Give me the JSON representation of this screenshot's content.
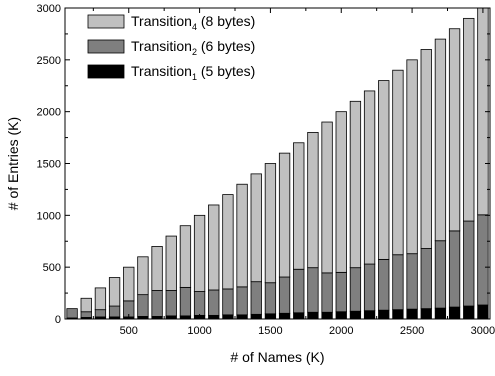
{
  "chart_data": {
    "type": "bar",
    "stacked": true,
    "xlabel": "# of Names (K)",
    "ylabel": "# of Entries (K)",
    "xlim": [
      0,
      3000
    ],
    "ylim": [
      0,
      3000
    ],
    "xticks": [
      500,
      1000,
      1500,
      2000,
      2500,
      3000
    ],
    "yticks": [
      0,
      500,
      1000,
      1500,
      2000,
      2500,
      3000
    ],
    "grid": false,
    "legend_position": "top-left",
    "x": [
      100,
      200,
      300,
      400,
      500,
      600,
      700,
      800,
      900,
      1000,
      1100,
      1200,
      1300,
      1400,
      1500,
      1600,
      1700,
      1800,
      1900,
      2000,
      2100,
      2200,
      2300,
      2400,
      2500,
      2600,
      2700,
      2800,
      2900,
      3000
    ],
    "series": [
      {
        "name": "Transition1 (5 bytes)",
        "legend": {
          "base": "Transition",
          "sub": "1",
          "suffix": " (5 bytes)"
        },
        "color": "#000000",
        "values": [
          10,
          15,
          20,
          20,
          20,
          25,
          25,
          30,
          30,
          35,
          35,
          40,
          40,
          45,
          50,
          55,
          60,
          65,
          65,
          70,
          75,
          80,
          85,
          90,
          95,
          100,
          105,
          115,
          125,
          135
        ]
      },
      {
        "name": "Transition2 (6 bytes)",
        "legend": {
          "base": "Transition",
          "sub": "2",
          "suffix": " (6 bytes)"
        },
        "color": "#7f7f7f",
        "values": [
          90,
          55,
          70,
          105,
          155,
          210,
          250,
          245,
          275,
          230,
          245,
          250,
          270,
          315,
          300,
          350,
          420,
          430,
          380,
          380,
          420,
          450,
          490,
          530,
          535,
          580,
          650,
          735,
          820,
          870
        ]
      },
      {
        "name": "Transition4 (8 bytes)",
        "legend": {
          "base": "Transition",
          "sub": "4",
          "suffix": " (8 bytes)"
        },
        "color": "#c0c0c0",
        "values": [
          0,
          130,
          210,
          275,
          325,
          365,
          425,
          525,
          595,
          735,
          820,
          910,
          990,
          1040,
          1150,
          1195,
          1220,
          1305,
          1455,
          1550,
          1605,
          1670,
          1725,
          1780,
          1870,
          1920,
          1945,
          1950,
          1955,
          1995
        ]
      }
    ]
  }
}
